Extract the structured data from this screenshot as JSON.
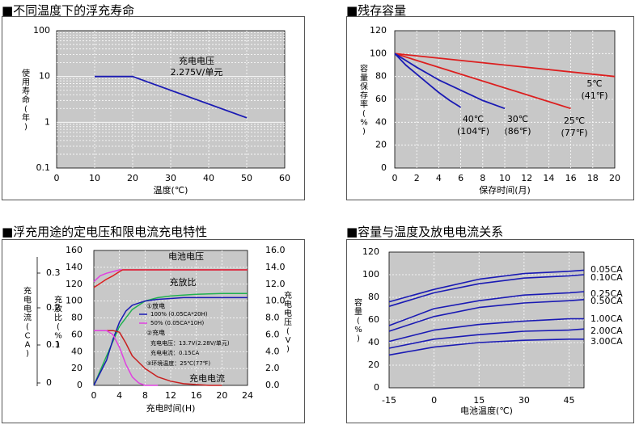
{
  "panels": [
    {
      "title": "■不同温度下的浮充寿命"
    },
    {
      "title": "■残存容量"
    },
    {
      "title": "■浮充用途的定电压和限电流充电特性"
    },
    {
      "title": "■容量与温度及放电电流关系"
    }
  ],
  "colors": {
    "plot_bg": "#c8c8c8",
    "grid": "#ffffff",
    "blue": "#1a1ab4",
    "red": "#dc1e1e",
    "magenta": "#e040e0",
    "green": "#20b050",
    "darkred": "#c81e1e"
  },
  "chart_data": [
    {
      "type": "line",
      "yscale": "log",
      "xlabel": "温度(℃)",
      "ylabel": "使用寿命(年)",
      "xlim": [
        0,
        60
      ],
      "ylim": [
        0.1,
        100
      ],
      "xticks": [
        "0",
        "10",
        "20",
        "30",
        "40",
        "50",
        "60"
      ],
      "yticks": [
        "0.1",
        "1",
        "10",
        "100"
      ],
      "annotation": [
        "充电电压",
        "2.275V/单元"
      ],
      "series": [
        {
          "color": "#1a1ab4",
          "x": [
            10,
            20,
            50
          ],
          "y": [
            10,
            10,
            1.25
          ]
        }
      ]
    },
    {
      "type": "line",
      "xlabel": "保存时间(月)",
      "ylabel": "容量保存率(%)",
      "xlim": [
        0,
        20
      ],
      "ylim": [
        0,
        120
      ],
      "xticks": [
        "0",
        "2",
        "4",
        "6",
        "8",
        "10",
        "12",
        "14",
        "16",
        "18",
        "20"
      ],
      "yticks": [
        "0",
        "20",
        "40",
        "60",
        "80",
        "100",
        "120"
      ],
      "series": [
        {
          "label": [
            "5℃",
            "(41℉)"
          ],
          "color": "#dc1e1e",
          "x": [
            0,
            20
          ],
          "y": [
            100,
            80
          ]
        },
        {
          "label": [
            "25℃",
            "(77℉)"
          ],
          "color": "#dc1e1e",
          "x": [
            0,
            16
          ],
          "y": [
            100,
            52
          ]
        },
        {
          "label": [
            "30℃",
            "(86℉)"
          ],
          "color": "#1a1ab4",
          "x": [
            0,
            2,
            4,
            6,
            8,
            10
          ],
          "y": [
            100,
            88,
            77,
            68,
            59,
            52
          ]
        },
        {
          "label": [
            "40℃",
            "(104℉)"
          ],
          "color": "#1a1ab4",
          "x": [
            0,
            1,
            2,
            3,
            4,
            5,
            6
          ],
          "y": [
            100,
            90,
            82,
            74,
            66,
            59,
            53
          ]
        }
      ]
    },
    {
      "type": "line",
      "xlabel": "充电时间(H)",
      "ylabel_left": "充放比(%)",
      "ylabel_right": "充电电压(V)",
      "ylabel_outer": "充电电流(CA)",
      "xlim": [
        0,
        24
      ],
      "ylim": [
        0,
        160
      ],
      "xticks": [
        "0",
        "4",
        "8",
        "12",
        "16",
        "20",
        "24"
      ],
      "yticks_left": [
        "0",
        "20",
        "40",
        "60",
        "80",
        "100",
        "120",
        "140",
        "160"
      ],
      "yticks_right": [
        "0.0",
        "2.0",
        "4.0",
        "6.0",
        "8.0",
        "10.0",
        "12.0",
        "14.0",
        "16.0"
      ],
      "yticks_outer": [
        "0",
        "0.1",
        "0.2",
        "0.3"
      ],
      "curve_labels": {
        "voltage": "电池电压",
        "ratio": "充放比",
        "current": "充电电流"
      },
      "notes": {
        "discharge": "①放电",
        "rate100": "100% (0.05CA*20H)",
        "rate50": "50% (0.05CA*10H)",
        "charge": "②充电",
        "charge_v": "充电电压：13.7V(2.28V/单元)",
        "charge_i": "充电电流：0.15CA",
        "temp": "③环境温度：25℃(77℉)"
      },
      "series": [
        {
          "name": "电池电压 (100%)",
          "color": "#e040e0",
          "x": [
            0,
            1,
            2,
            3,
            4,
            5,
            6,
            24
          ],
          "y": [
            123,
            130,
            133,
            135,
            137,
            137,
            137,
            137
          ]
        },
        {
          "name": "电池电压 (50%)",
          "color": "#dc1e1e",
          "x": [
            0,
            1,
            2,
            3,
            4,
            4.5,
            6,
            24
          ],
          "y": [
            116,
            121,
            126,
            130,
            135,
            137,
            137,
            137
          ]
        },
        {
          "name": "充放比 (100%)",
          "color": "#20b050",
          "x": [
            0,
            2,
            4,
            6,
            8,
            10,
            12,
            14,
            16,
            20,
            24
          ],
          "y": [
            0,
            35,
            70,
            90,
            100,
            104,
            106,
            107,
            108,
            109,
            109
          ]
        },
        {
          "name": "充放比 (50%)",
          "color": "#1a1ab4",
          "x": [
            0,
            2,
            3,
            4,
            5,
            6,
            8,
            10,
            12,
            14,
            24
          ],
          "y": [
            0,
            30,
            55,
            75,
            88,
            95,
            100,
            102,
            103,
            104,
            104
          ]
        },
        {
          "name": "充电电流 (100%)",
          "color": "#c81e1e",
          "x": [
            0,
            3,
            4,
            5,
            6,
            8,
            10,
            12,
            14,
            16,
            18,
            20
          ],
          "y": [
            65,
            65,
            63,
            50,
            35,
            20,
            10,
            5,
            2,
            1,
            0,
            0
          ]
        },
        {
          "name": "充电电流 (50%)",
          "color": "#e040e0",
          "x": [
            0,
            2,
            3,
            4,
            5,
            6,
            7,
            8,
            10
          ],
          "y": [
            65,
            65,
            60,
            45,
            25,
            10,
            3,
            0,
            0
          ]
        }
      ]
    },
    {
      "type": "line",
      "xlabel": "电池温度(℃)",
      "ylabel": "容量(%)",
      "xlim": [
        -15,
        50
      ],
      "ylim": [
        0,
        120
      ],
      "xticks": [
        "-15",
        "0",
        "15",
        "30",
        "45"
      ],
      "yticks": [
        "0",
        "20",
        "40",
        "60",
        "80",
        "100",
        "120"
      ],
      "series": [
        {
          "name": "0.05CA",
          "color": "#1a1ab4",
          "x": [
            -15,
            0,
            15,
            30,
            45,
            50
          ],
          "y": [
            76,
            87,
            96,
            101,
            103,
            104
          ]
        },
        {
          "name": "0.10CA",
          "color": "#1a1ab4",
          "x": [
            -15,
            0,
            15,
            30,
            45,
            50
          ],
          "y": [
            72,
            84,
            92,
            97,
            99,
            100
          ]
        },
        {
          "name": "0.25CA",
          "color": "#1a1ab4",
          "x": [
            -15,
            0,
            15,
            30,
            45,
            50
          ],
          "y": [
            55,
            70,
            77,
            82,
            84,
            85
          ]
        },
        {
          "name": "0.50CA",
          "color": "#1a1ab4",
          "x": [
            -15,
            0,
            15,
            30,
            45,
            50
          ],
          "y": [
            50,
            63,
            71,
            75,
            77,
            78
          ]
        },
        {
          "name": "1.00CA",
          "color": "#1a1ab4",
          "x": [
            -15,
            0,
            15,
            30,
            45,
            50
          ],
          "y": [
            41,
            51,
            56,
            59,
            61,
            61
          ]
        },
        {
          "name": "2.00CA",
          "color": "#1a1ab4",
          "x": [
            -15,
            0,
            15,
            30,
            45,
            50
          ],
          "y": [
            35,
            43,
            47,
            50,
            51,
            52
          ]
        },
        {
          "name": "3.00CA",
          "color": "#1a1ab4",
          "x": [
            -15,
            0,
            15,
            30,
            45,
            50
          ],
          "y": [
            29,
            36,
            40,
            42,
            43,
            43
          ]
        }
      ]
    }
  ]
}
